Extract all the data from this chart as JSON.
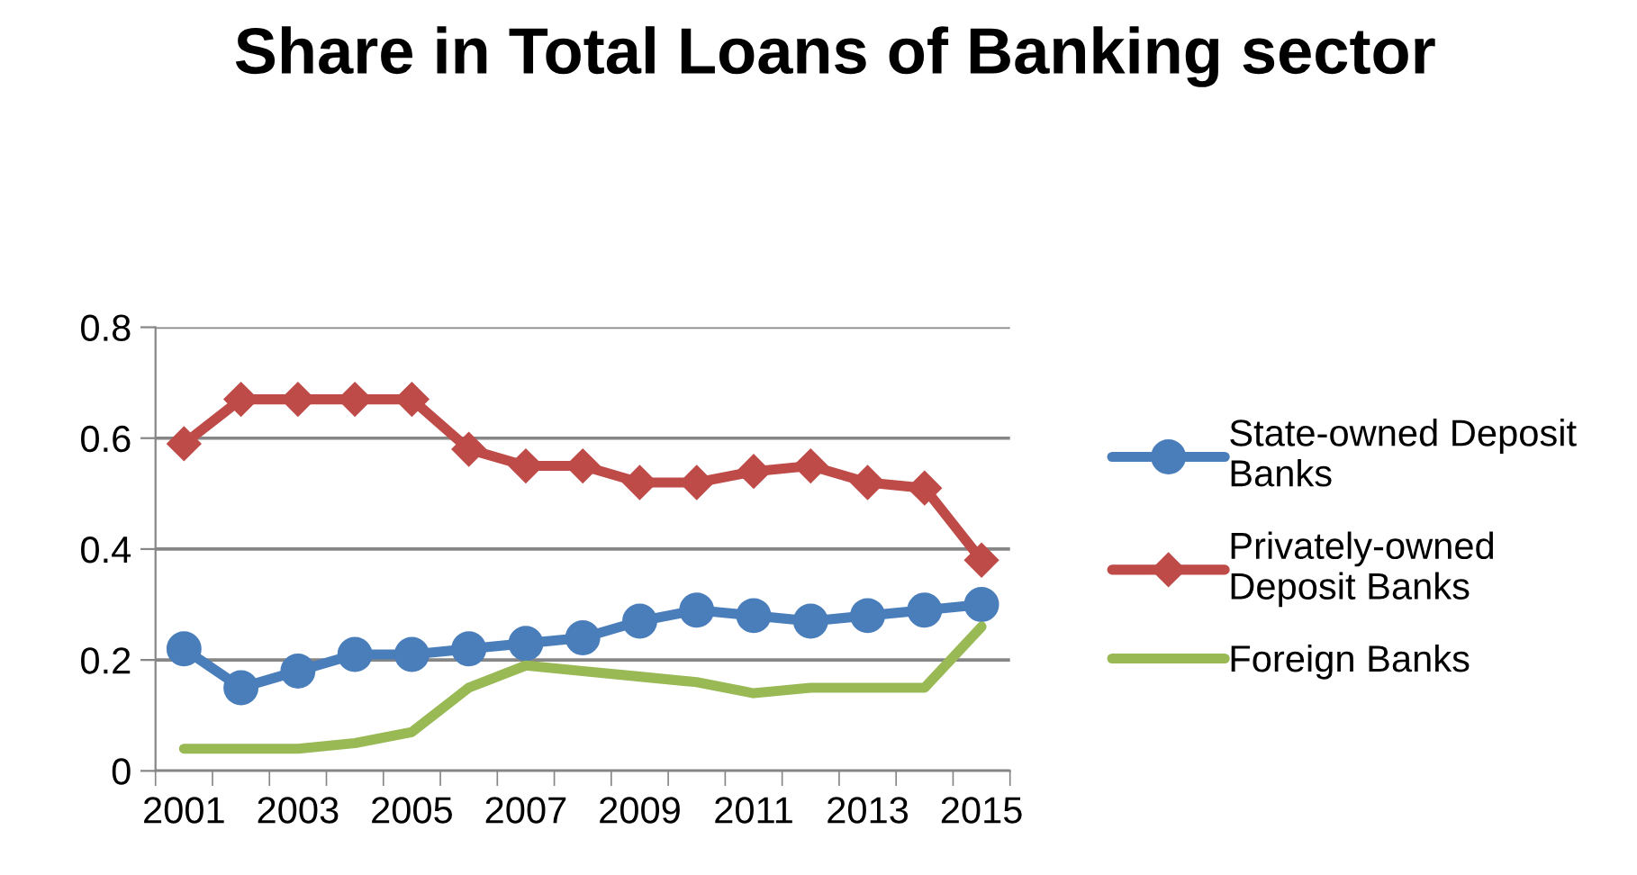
{
  "chart_data": {
    "type": "line",
    "title": "Share in Total Loans of Banking sector",
    "categories": [
      "2001",
      null,
      "2003",
      null,
      "2005",
      null,
      "2007",
      null,
      "2009",
      null,
      "2011",
      null,
      "2013",
      null,
      "2015"
    ],
    "series": [
      {
        "name": "State-owned Deposit Banks",
        "color": "#4a7ebb",
        "marker": "circle",
        "values": [
          0.22,
          0.15,
          0.18,
          0.21,
          0.21,
          0.22,
          0.23,
          0.24,
          0.27,
          0.29,
          0.28,
          0.27,
          0.28,
          0.29,
          0.3
        ]
      },
      {
        "name": "Privately-owned Deposit Banks",
        "color": "#be4b48",
        "marker": "diamond",
        "values": [
          0.59,
          0.67,
          0.67,
          0.67,
          0.67,
          0.58,
          0.55,
          0.55,
          0.52,
          0.52,
          0.54,
          0.55,
          0.52,
          0.51,
          0.38
        ]
      },
      {
        "name": "Foreign Banks",
        "color": "#98b954",
        "marker": "none",
        "values": [
          0.04,
          0.04,
          0.04,
          0.05,
          0.07,
          0.15,
          0.19,
          0.18,
          0.17,
          0.16,
          0.14,
          0.15,
          0.15,
          0.15,
          0.26
        ]
      }
    ],
    "ylim": [
      0,
      0.8
    ],
    "yticks": [
      0,
      0.2,
      0.4,
      0.6,
      0.8
    ],
    "grid": "y",
    "legend": "right",
    "line_style": "solid"
  }
}
